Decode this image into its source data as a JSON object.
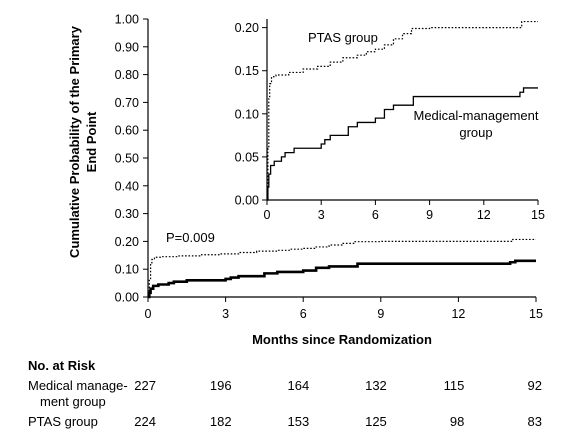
{
  "chart_data": [
    {
      "type": "line",
      "ylabel": [
        "Cumulative Probability of the Primary",
        "End Point"
      ],
      "xlabel": "Months since Randomization",
      "xlim": [
        0,
        15
      ],
      "ylim": [
        0,
        1
      ],
      "x_ticks": [
        "0",
        "3",
        "6",
        "9",
        "12",
        "15"
      ],
      "y_ticks": [
        "0.00",
        "0.10",
        "0.20",
        "0.30",
        "0.40",
        "0.50",
        "0.60",
        "0.70",
        "0.80",
        "0.90",
        "1.00"
      ],
      "annotations": [
        "P=0.009"
      ],
      "series": [
        {
          "name": "PTAS group",
          "style": "dotted",
          "points": [
            [
              0,
              0
            ],
            [
              0.05,
              0.06
            ],
            [
              0.1,
              0.12
            ],
            [
              0.15,
              0.135
            ],
            [
              0.25,
              0.143
            ],
            [
              0.5,
              0.145
            ],
            [
              1.2,
              0.148
            ],
            [
              2.0,
              0.152
            ],
            [
              2.8,
              0.155
            ],
            [
              3.5,
              0.16
            ],
            [
              4.2,
              0.165
            ],
            [
              5.0,
              0.168
            ],
            [
              5.5,
              0.172
            ],
            [
              6.0,
              0.175
            ],
            [
              6.5,
              0.18
            ],
            [
              7.0,
              0.187
            ],
            [
              7.5,
              0.193
            ],
            [
              8.0,
              0.199
            ],
            [
              9.0,
              0.2
            ],
            [
              10.0,
              0.2
            ],
            [
              11.0,
              0.2
            ],
            [
              12.0,
              0.2
            ],
            [
              13.0,
              0.2
            ],
            [
              14.0,
              0.2
            ],
            [
              14.1,
              0.207
            ],
            [
              15.0,
              0.207
            ]
          ]
        },
        {
          "name": "Medical-management group",
          "style": "solid",
          "points": [
            [
              0,
              0
            ],
            [
              0.05,
              0.015
            ],
            [
              0.1,
              0.03
            ],
            [
              0.2,
              0.04
            ],
            [
              0.4,
              0.045
            ],
            [
              0.8,
              0.05
            ],
            [
              1.0,
              0.055
            ],
            [
              1.5,
              0.06
            ],
            [
              3.0,
              0.065
            ],
            [
              3.2,
              0.07
            ],
            [
              3.5,
              0.075
            ],
            [
              4.5,
              0.085
            ],
            [
              5.0,
              0.09
            ],
            [
              6.0,
              0.095
            ],
            [
              6.5,
              0.105
            ],
            [
              7.0,
              0.11
            ],
            [
              8.1,
              0.12
            ],
            [
              9.0,
              0.12
            ],
            [
              13.0,
              0.12
            ],
            [
              14.0,
              0.125
            ],
            [
              14.2,
              0.13
            ],
            [
              15.0,
              0.13
            ]
          ]
        }
      ]
    },
    {
      "type": "line",
      "role": "inset",
      "xlim": [
        0,
        15
      ],
      "ylim": [
        0,
        0.21
      ],
      "x_ticks": [
        "0",
        "3",
        "6",
        "9",
        "12",
        "15"
      ],
      "y_ticks": [
        "0.00",
        "0.05",
        "0.10",
        "0.15",
        "0.20"
      ],
      "labels": {
        "ptas": "PTAS group",
        "medical": [
          "Medical-management",
          "group"
        ]
      }
    }
  ],
  "risk_table": {
    "title": "No. at Risk",
    "rows": [
      {
        "label": [
          "Medical manage-",
          "ment group"
        ],
        "values": [
          "227",
          "196",
          "164",
          "132",
          "115",
          "92"
        ]
      },
      {
        "label": [
          "PTAS group"
        ],
        "values": [
          "224",
          "182",
          "153",
          "125",
          "98",
          "83"
        ]
      }
    ]
  }
}
